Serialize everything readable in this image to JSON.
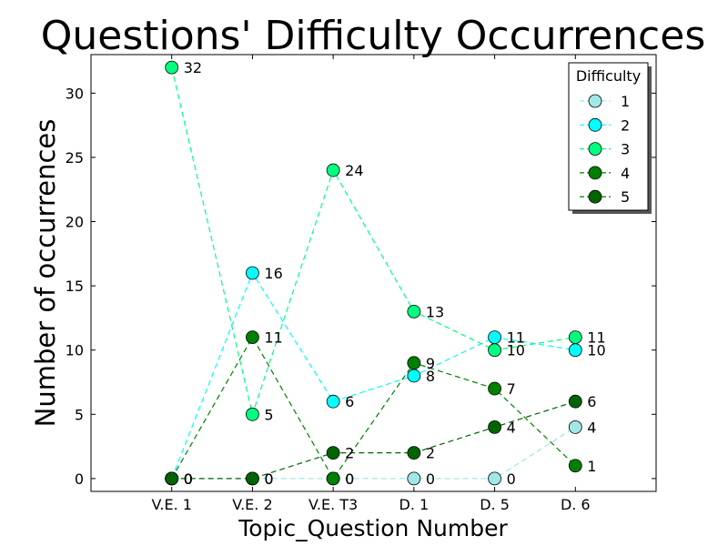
{
  "chart_data": {
    "type": "line",
    "title": "Questions' Difficulty Occurrences",
    "xlabel": "Topic_Question Number",
    "ylabel": "Number of occurrences",
    "categories": [
      "V.E. 1",
      "V.E. 2",
      "V.E. T3",
      "D. 1",
      "D. 5",
      "D. 6"
    ],
    "xlim": [
      -1,
      6
    ],
    "ylim": [
      -1,
      33
    ],
    "yticks": [
      0,
      5,
      10,
      15,
      20,
      25,
      30
    ],
    "grid": false,
    "legend": {
      "title": "Difficulty",
      "placement": "top-right"
    },
    "series": [
      {
        "name": "1",
        "color": "#a0e8e8",
        "values": [
          0,
          0,
          0,
          0,
          0,
          4
        ]
      },
      {
        "name": "2",
        "color": "#00ffff",
        "values": [
          0,
          16,
          6,
          8,
          11,
          10
        ]
      },
      {
        "name": "3",
        "color": "#00ff7f",
        "values": [
          32,
          5,
          24,
          13,
          10,
          11
        ]
      },
      {
        "name": "4",
        "color": "#008000",
        "values": [
          0,
          11,
          0,
          9,
          7,
          1
        ]
      },
      {
        "name": "5",
        "color": "#006400",
        "values": [
          0,
          0,
          2,
          2,
          4,
          6
        ]
      }
    ]
  }
}
